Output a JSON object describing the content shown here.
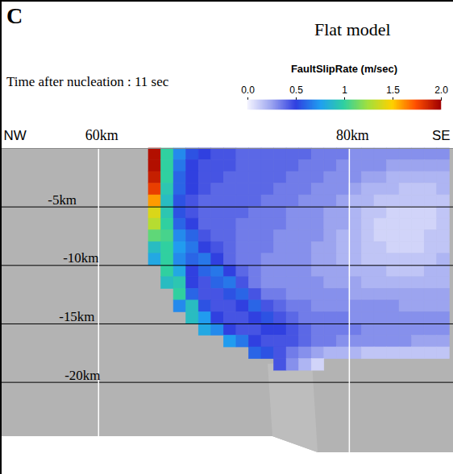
{
  "chart_data": {
    "type": "heatmap",
    "panel": "C",
    "title": "Flat model",
    "subtitle": "Time after nucleation : 11 sec",
    "colorbar": {
      "label": "FaultSlipRate (m/sec)",
      "range": [
        0,
        2
      ],
      "ticks": [
        {
          "value": 0,
          "label": "0.0"
        },
        0.5,
        1,
        1.5,
        {
          "value": 2,
          "label": "2.0"
        }
      ]
    },
    "xlim": [
      52.3,
      88.3
    ],
    "ylim": [
      -27.9,
      2.2
    ],
    "direction_labels": [
      "NW",
      "SE"
    ],
    "distance_lines": [
      {
        "value": 60,
        "label": "60km"
      },
      {
        "value": 80,
        "label": "80km"
      }
    ],
    "depth_lines": [
      {
        "value": -5,
        "label": "-5km"
      },
      {
        "value": -10,
        "label": "-10km"
      },
      {
        "value": -15,
        "label": "-15km"
      },
      {
        "value": -20,
        "label": "-20km"
      }
    ],
    "cells": {
      "x": [
        64,
        65,
        66,
        67,
        68,
        69,
        70,
        71,
        72,
        73,
        74,
        75,
        76,
        77,
        78,
        79,
        80,
        81,
        82,
        83,
        84,
        85,
        86,
        87,
        88
      ],
      "y": [
        0,
        -1,
        -2,
        -3,
        -4,
        -5,
        -6,
        -7,
        -8,
        -9,
        -10,
        -11,
        -12,
        -13,
        -14,
        -15,
        -16,
        -17,
        -18,
        -19
      ],
      "values": [
        [
          1.95,
          1.0,
          0.7,
          0.55,
          0.5,
          0.45,
          0.45,
          0.4,
          0.4,
          0.4,
          0.4,
          0.4,
          0.4,
          0.35,
          0.35,
          0.35,
          0.3,
          0.3,
          0.3,
          0.3,
          0.3,
          0.3,
          0.3,
          0.3
        ],
        [
          1.95,
          1.0,
          0.65,
          0.5,
          0.45,
          0.45,
          0.45,
          0.4,
          0.4,
          0.4,
          0.4,
          0.4,
          0.35,
          0.35,
          0.35,
          0.3,
          0.3,
          0.3,
          0.3,
          0.25,
          0.25,
          0.25,
          0.25,
          0.25
        ],
        [
          1.9,
          1.0,
          0.6,
          0.5,
          0.45,
          0.45,
          0.4,
          0.4,
          0.4,
          0.4,
          0.4,
          0.35,
          0.35,
          0.35,
          0.3,
          0.3,
          0.3,
          0.25,
          0.25,
          0.2,
          0.2,
          0.2,
          0.2,
          0.2
        ],
        [
          1.8,
          0.95,
          0.6,
          0.5,
          0.45,
          0.4,
          0.4,
          0.4,
          0.4,
          0.4,
          0.35,
          0.35,
          0.35,
          0.3,
          0.3,
          0.3,
          0.25,
          0.2,
          0.2,
          0.2,
          0.15,
          0.15,
          0.15,
          0.2
        ],
        [
          1.6,
          0.9,
          0.55,
          0.45,
          0.4,
          0.4,
          0.4,
          0.4,
          0.4,
          0.35,
          0.35,
          0.35,
          0.3,
          0.3,
          0.3,
          0.25,
          0.2,
          0.2,
          0.15,
          0.15,
          0.15,
          0.15,
          0.15,
          0.15
        ],
        [
          1.4,
          0.95,
          0.55,
          0.45,
          0.4,
          0.4,
          0.4,
          0.4,
          0.35,
          0.35,
          0.35,
          0.3,
          0.3,
          0.3,
          0.25,
          0.25,
          0.2,
          0.15,
          0.15,
          0.1,
          0.1,
          0.1,
          0.1,
          0.15
        ],
        [
          1.3,
          1.0,
          0.6,
          0.5,
          0.4,
          0.4,
          0.4,
          0.35,
          0.35,
          0.35,
          0.35,
          0.3,
          0.3,
          0.3,
          0.25,
          0.25,
          0.2,
          0.15,
          0.1,
          0.1,
          0.1,
          0.1,
          0.1,
          0.15
        ],
        [
          1.1,
          1.05,
          0.7,
          0.6,
          0.45,
          0.4,
          0.4,
          0.35,
          0.35,
          0.35,
          0.3,
          0.3,
          0.3,
          0.3,
          0.25,
          0.2,
          0.2,
          0.15,
          0.1,
          0.1,
          0.1,
          0.1,
          0.15,
          0.15
        ],
        [
          0.9,
          1.0,
          0.75,
          0.65,
          0.5,
          0.45,
          0.4,
          0.35,
          0.35,
          0.35,
          0.3,
          0.3,
          0.3,
          0.25,
          0.25,
          0.2,
          0.2,
          0.15,
          0.15,
          0.1,
          0.1,
          0.1,
          0.15,
          0.15
        ],
        [
          0.8,
          1.0,
          0.7,
          0.6,
          0.65,
          0.5,
          0.4,
          0.35,
          0.35,
          0.3,
          0.3,
          0.3,
          0.3,
          0.25,
          0.25,
          0.2,
          0.2,
          0.15,
          0.15,
          0.15,
          0.15,
          0.15,
          0.15,
          0.2
        ],
        [
          null,
          1.0,
          0.8,
          0.5,
          0.6,
          0.65,
          0.5,
          0.4,
          0.35,
          0.3,
          0.3,
          0.3,
          0.3,
          0.25,
          0.25,
          0.25,
          0.2,
          0.2,
          0.2,
          0.15,
          0.15,
          0.15,
          0.2,
          0.2
        ],
        [
          null,
          0.9,
          0.95,
          0.5,
          0.45,
          0.6,
          0.65,
          0.45,
          0.35,
          0.3,
          0.3,
          0.3,
          0.3,
          0.3,
          0.25,
          0.25,
          0.25,
          0.2,
          0.2,
          0.2,
          0.2,
          0.2,
          0.2,
          0.2
        ],
        [
          null,
          null,
          1.0,
          0.6,
          0.45,
          0.45,
          0.55,
          0.6,
          0.45,
          0.35,
          0.35,
          0.3,
          0.3,
          0.3,
          0.3,
          0.3,
          0.25,
          0.25,
          0.25,
          0.25,
          0.25,
          0.25,
          0.25,
          0.25
        ],
        [
          null,
          null,
          0.7,
          0.9,
          0.55,
          0.45,
          0.45,
          0.5,
          0.6,
          0.45,
          0.4,
          0.35,
          0.35,
          0.3,
          0.3,
          0.3,
          0.3,
          0.3,
          0.3,
          0.3,
          0.25,
          0.25,
          0.25,
          0.25
        ],
        [
          null,
          null,
          null,
          0.9,
          0.75,
          0.5,
          0.45,
          0.45,
          0.5,
          0.55,
          0.45,
          0.4,
          0.35,
          0.35,
          0.35,
          0.35,
          0.3,
          0.3,
          0.3,
          0.3,
          0.3,
          0.3,
          0.3,
          0.3
        ],
        [
          null,
          null,
          null,
          null,
          0.8,
          0.7,
          0.5,
          0.45,
          0.45,
          0.5,
          0.5,
          0.45,
          0.4,
          0.35,
          0.35,
          0.35,
          0.35,
          0.3,
          0.3,
          0.3,
          0.3,
          0.3,
          0.3,
          0.3
        ],
        [
          null,
          null,
          null,
          null,
          null,
          null,
          0.75,
          0.65,
          0.5,
          0.45,
          0.45,
          0.45,
          0.4,
          0.35,
          0.35,
          0.3,
          0.3,
          0.3,
          0.3,
          0.3,
          0.3,
          0.25,
          0.25,
          0.25
        ],
        [
          null,
          null,
          null,
          null,
          null,
          null,
          null,
          null,
          0.6,
          0.55,
          0.45,
          0.35,
          0.3,
          0.25,
          0.2,
          0.2,
          0.2,
          0.15,
          0.15,
          0.15,
          0.15,
          0.15,
          0.15,
          0.15
        ],
        [
          null,
          null,
          null,
          null,
          null,
          null,
          null,
          null,
          null,
          null,
          0.45,
          0.3,
          0.2,
          0.1,
          null,
          null,
          null,
          null,
          null,
          null,
          null,
          null,
          null,
          null
        ]
      ]
    }
  }
}
